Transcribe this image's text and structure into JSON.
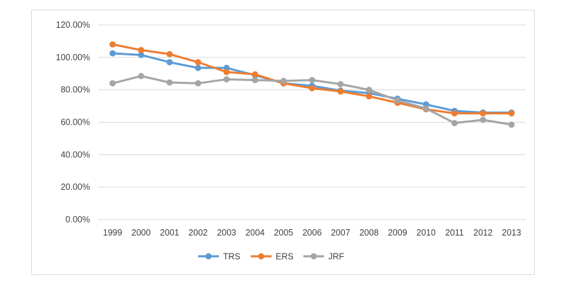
{
  "chart_data": {
    "type": "line",
    "categories": [
      "1999",
      "2000",
      "2001",
      "2002",
      "2003",
      "2004",
      "2005",
      "2006",
      "2007",
      "2008",
      "2009",
      "2010",
      "2011",
      "2012",
      "2013"
    ],
    "ylim": [
      0,
      1.2
    ],
    "yticks": [
      0,
      0.2,
      0.4,
      0.6,
      0.8,
      1.0,
      1.2
    ],
    "ytick_labels": [
      "0.00%",
      "20.00%",
      "40.00%",
      "60.00%",
      "80.00%",
      "100.00%",
      "120.00%"
    ],
    "grid": true,
    "legend_position": "bottom",
    "series": [
      {
        "name": "TRS",
        "color": "#5b9bd5",
        "values": [
          1.025,
          1.015,
          0.97,
          0.935,
          0.935,
          0.89,
          0.84,
          0.825,
          0.795,
          0.78,
          0.745,
          0.71,
          0.67,
          0.66,
          0.66
        ]
      },
      {
        "name": "ERS",
        "color": "#ed7d31",
        "values": [
          1.08,
          1.045,
          1.02,
          0.97,
          0.91,
          0.895,
          0.84,
          0.81,
          0.79,
          0.76,
          0.72,
          0.68,
          0.655,
          0.655,
          0.655
        ]
      },
      {
        "name": "JRF",
        "color": "#a5a5a5",
        "values": [
          0.84,
          0.885,
          0.845,
          0.84,
          0.865,
          0.86,
          0.855,
          0.86,
          0.835,
          0.8,
          0.735,
          0.685,
          0.595,
          0.615,
          0.585
        ]
      }
    ]
  }
}
